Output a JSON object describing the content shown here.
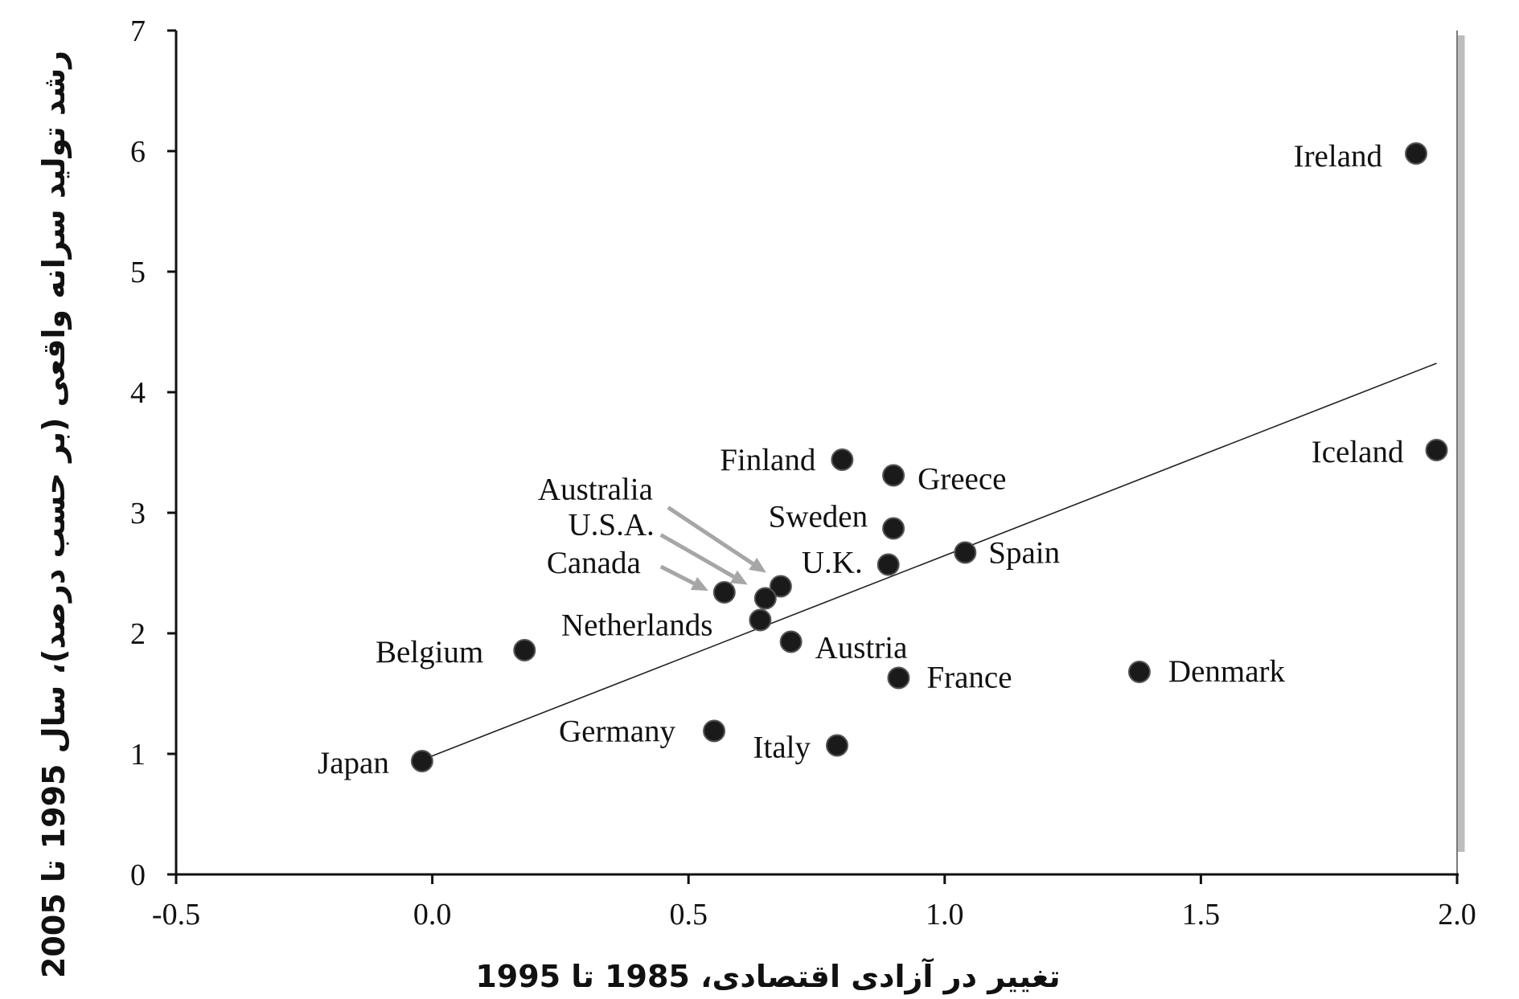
{
  "chart_data": {
    "type": "scatter",
    "xlabel": "تغییر در آزادی اقتصادی، 1985 تا 1995",
    "ylabel": "رشد تولید سرانه واقعی (بر حسب درصد)، سال 1995 تا 2005",
    "xlim": [
      -0.5,
      2.0
    ],
    "ylim": [
      0,
      7
    ],
    "x_ticks": [
      "-0.5",
      "0.0",
      "0.5",
      "1.0",
      "1.5",
      "2.0"
    ],
    "y_ticks": [
      "0",
      "1",
      "2",
      "3",
      "4",
      "5",
      "6",
      "7"
    ],
    "grid": false,
    "points": [
      {
        "label": "Ireland",
        "x": 1.92,
        "y": 5.98
      },
      {
        "label": "Iceland",
        "x": 1.96,
        "y": 3.52
      },
      {
        "label": "Finland",
        "x": 0.8,
        "y": 3.44
      },
      {
        "label": "Greece",
        "x": 0.9,
        "y": 3.31
      },
      {
        "label": "Sweden",
        "x": 0.9,
        "y": 2.87
      },
      {
        "label": "Spain",
        "x": 1.04,
        "y": 2.67
      },
      {
        "label": "U.K.",
        "x": 0.89,
        "y": 2.57
      },
      {
        "label": "Australia",
        "x": 0.68,
        "y": 2.39
      },
      {
        "label": "U.S.A.",
        "x": 0.65,
        "y": 2.29
      },
      {
        "label": "Canada",
        "x": 0.57,
        "y": 2.34
      },
      {
        "label": "Netherlands",
        "x": 0.64,
        "y": 2.11
      },
      {
        "label": "Austria",
        "x": 0.7,
        "y": 1.93
      },
      {
        "label": "Belgium",
        "x": 0.18,
        "y": 1.86
      },
      {
        "label": "France",
        "x": 0.91,
        "y": 1.63
      },
      {
        "label": "Denmark",
        "x": 1.38,
        "y": 1.68
      },
      {
        "label": "Germany",
        "x": 0.55,
        "y": 1.19
      },
      {
        "label": "Italy",
        "x": 0.79,
        "y": 1.07
      },
      {
        "label": "Japan",
        "x": -0.02,
        "y": 0.94
      }
    ],
    "trendline": {
      "x": [
        -0.02,
        1.96
      ],
      "y": [
        0.95,
        4.24
      ]
    }
  }
}
